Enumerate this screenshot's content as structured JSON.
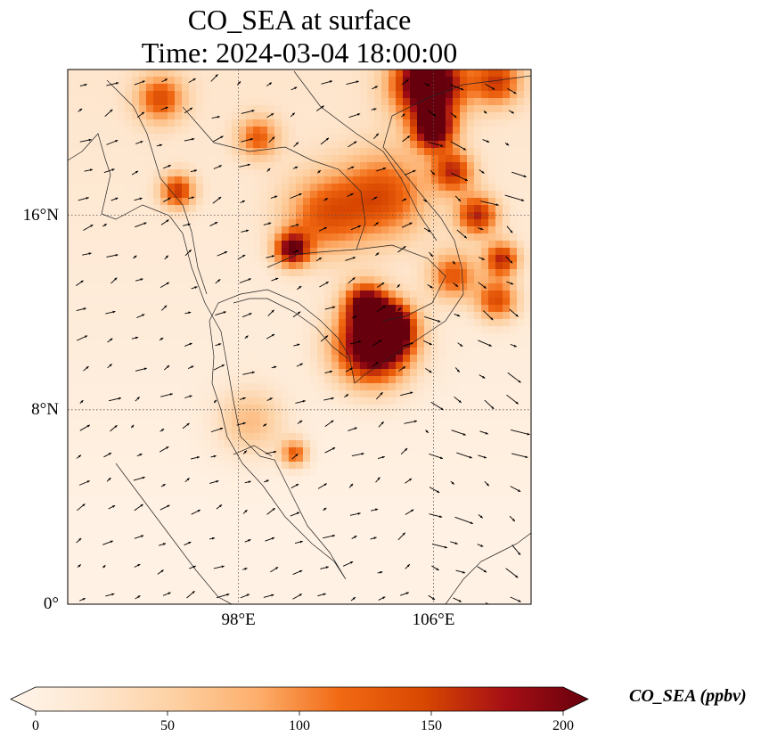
{
  "title": {
    "line1": "CO_SEA at surface",
    "line2": "Time: 2024-03-04 18:00:00"
  },
  "map": {
    "lon_range": [
      91,
      110
    ],
    "lat_range": [
      0,
      22
    ],
    "lat_ticks": [
      {
        "value": 0,
        "label": "0°"
      },
      {
        "value": 8,
        "label": "8°N"
      },
      {
        "value": 16,
        "label": "16°N"
      }
    ],
    "lon_ticks": [
      {
        "value": 98,
        "label": "98°E"
      },
      {
        "value": 106,
        "label": "106°E"
      }
    ],
    "gridlines": "dotted",
    "field_name": "CO_SEA",
    "hotspots": [
      {
        "lon": 103.5,
        "lat": 10.6,
        "intensity": 220,
        "spread": 1.1
      },
      {
        "lon": 104.2,
        "lat": 11.4,
        "intensity": 190,
        "spread": 0.7
      },
      {
        "lon": 103.2,
        "lat": 12.4,
        "intensity": 150,
        "spread": 0.6
      },
      {
        "lon": 105.8,
        "lat": 21.4,
        "intensity": 240,
        "spread": 1.0
      },
      {
        "lon": 106.0,
        "lat": 19.5,
        "intensity": 180,
        "spread": 0.6
      },
      {
        "lon": 106.8,
        "lat": 17.8,
        "intensity": 130,
        "spread": 0.6
      },
      {
        "lon": 107.8,
        "lat": 16.0,
        "intensity": 140,
        "spread": 0.6
      },
      {
        "lon": 108.8,
        "lat": 14.2,
        "intensity": 140,
        "spread": 0.5
      },
      {
        "lon": 108.6,
        "lat": 12.5,
        "intensity": 120,
        "spread": 0.6
      },
      {
        "lon": 100.2,
        "lat": 14.6,
        "intensity": 170,
        "spread": 0.5
      },
      {
        "lon": 101.5,
        "lat": 16.0,
        "intensity": 100,
        "spread": 1.2
      },
      {
        "lon": 104.0,
        "lat": 16.8,
        "intensity": 110,
        "spread": 1.3
      },
      {
        "lon": 95.5,
        "lat": 17.0,
        "intensity": 130,
        "spread": 0.5
      },
      {
        "lon": 94.8,
        "lat": 20.8,
        "intensity": 110,
        "spread": 0.7
      },
      {
        "lon": 98.8,
        "lat": 19.2,
        "intensity": 100,
        "spread": 0.6
      },
      {
        "lon": 106.8,
        "lat": 13.5,
        "intensity": 110,
        "spread": 0.7
      },
      {
        "lon": 100.3,
        "lat": 6.2,
        "intensity": 110,
        "spread": 0.4
      },
      {
        "lon": 108.6,
        "lat": 21.5,
        "intensity": 120,
        "spread": 0.7
      },
      {
        "lon": 98.5,
        "lat": 7.5,
        "intensity": 60,
        "spread": 1.0
      }
    ]
  },
  "colorbar": {
    "label": "CO_SEA (ppbv)",
    "min": 0,
    "max": 200,
    "ticks": [
      "0",
      "50",
      "100",
      "150",
      "200"
    ],
    "colormap": [
      "#fff5eb",
      "#fee6ce",
      "#fdd0a2",
      "#fdae6b",
      "#f16913",
      "#d94801",
      "#a50f15",
      "#67000d"
    ]
  }
}
